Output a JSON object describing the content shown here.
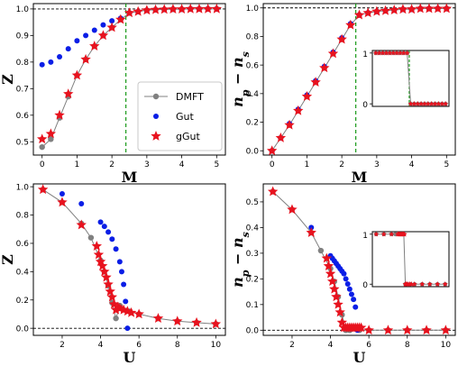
{
  "colors": {
    "dmft": "#808080",
    "gut": "#0a1ee6",
    "ggut": "#e8121e",
    "transition": "#1a9a1a",
    "reference": "#000000"
  },
  "legend": {
    "dmft": "DMFT",
    "gut": "Gut",
    "ggut": "gGut"
  },
  "chart_data": [
    {
      "id": "a",
      "type": "line",
      "xlabel": "M",
      "ylabel": "Z",
      "xlim": [
        -0.25,
        5.25
      ],
      "ylim": [
        0.45,
        1.02
      ],
      "xticks": [
        "0",
        "1",
        "2",
        "3",
        "4",
        "5"
      ],
      "yticks": [
        "0.5",
        "0.6",
        "0.7",
        "0.8",
        "0.9",
        "1.0"
      ],
      "hline": 1.0,
      "vline": 2.4,
      "legend_position": "lower-right",
      "series": [
        {
          "name": "DMFT",
          "marker": "circle-line",
          "x": [
            0,
            0.25,
            0.5,
            0.75,
            1.0,
            1.25,
            1.5,
            1.75,
            2.0,
            2.25,
            2.5,
            2.75,
            3.0,
            3.25,
            3.5,
            3.75,
            4.0,
            4.25,
            4.5,
            4.75,
            5.0
          ],
          "y": [
            0.48,
            0.51,
            0.59,
            0.67,
            0.75,
            0.81,
            0.86,
            0.9,
            0.93,
            0.96,
            0.985,
            0.99,
            0.995,
            0.997,
            0.998,
            0.999,
            0.999,
            1.0,
            1.0,
            1.0,
            1.0
          ]
        },
        {
          "name": "Gut",
          "marker": "dot",
          "x": [
            0,
            0.25,
            0.5,
            0.75,
            1.0,
            1.25,
            1.5,
            1.75,
            2.0,
            2.25,
            2.5,
            2.75,
            3.0,
            3.25,
            3.5,
            3.75,
            4.0,
            4.25,
            4.5,
            4.75,
            5.0
          ],
          "y": [
            0.79,
            0.8,
            0.82,
            0.85,
            0.88,
            0.9,
            0.92,
            0.94,
            0.955,
            0.965,
            0.985,
            0.99,
            0.995,
            0.997,
            0.998,
            0.999,
            0.999,
            1.0,
            1.0,
            1.0,
            1.0
          ]
        },
        {
          "name": "gGut",
          "marker": "star",
          "x": [
            0,
            0.25,
            0.5,
            0.75,
            1.0,
            1.25,
            1.5,
            1.75,
            2.0,
            2.25,
            2.5,
            2.75,
            3.0,
            3.25,
            3.5,
            3.75,
            4.0,
            4.25,
            4.5,
            4.75,
            5.0
          ],
          "y": [
            0.51,
            0.53,
            0.6,
            0.68,
            0.75,
            0.81,
            0.86,
            0.9,
            0.93,
            0.96,
            0.985,
            0.99,
            0.995,
            0.997,
            0.998,
            0.999,
            0.999,
            1.0,
            1.0,
            1.0,
            1.0
          ]
        }
      ]
    },
    {
      "id": "b",
      "type": "line",
      "xlabel": "M",
      "ylabel": "n_p − n_s",
      "xlim": [
        -0.25,
        5.25
      ],
      "ylim": [
        -0.03,
        1.03
      ],
      "xticks": [
        "0",
        "1",
        "2",
        "3",
        "4",
        "5"
      ],
      "yticks": [
        "0.0",
        "0.2",
        "0.4",
        "0.6",
        "0.8",
        "1.0"
      ],
      "hline": 1.0,
      "vline": 2.4,
      "series": [
        {
          "name": "DMFT",
          "marker": "circle-line",
          "x": [
            0,
            0.25,
            0.5,
            0.75,
            1.0,
            1.25,
            1.5,
            1.75,
            2.0,
            2.25,
            2.5,
            2.75,
            3.0,
            3.25,
            3.5,
            3.75,
            4.0,
            4.25,
            4.5,
            4.75,
            5.0
          ],
          "y": [
            0.0,
            0.09,
            0.18,
            0.28,
            0.38,
            0.48,
            0.58,
            0.68,
            0.78,
            0.88,
            0.95,
            0.965,
            0.975,
            0.98,
            0.985,
            0.99,
            0.99,
            0.995,
            0.995,
            0.995,
            0.995
          ]
        },
        {
          "name": "Gut",
          "marker": "dot",
          "x": [
            0,
            0.25,
            0.5,
            0.75,
            1.0,
            1.25,
            1.5,
            1.75,
            2.0,
            2.25,
            2.5,
            2.75,
            3.0,
            3.25,
            3.5,
            3.75,
            4.0,
            4.25,
            4.5,
            4.75,
            5.0
          ],
          "y": [
            0.0,
            0.09,
            0.19,
            0.29,
            0.39,
            0.49,
            0.59,
            0.69,
            0.79,
            0.89,
            0.95,
            0.965,
            0.975,
            0.98,
            0.985,
            0.99,
            0.99,
            0.995,
            0.995,
            0.995,
            0.995
          ]
        },
        {
          "name": "gGut",
          "marker": "star",
          "x": [
            0,
            0.25,
            0.5,
            0.75,
            1.0,
            1.25,
            1.5,
            1.75,
            2.0,
            2.25,
            2.5,
            2.75,
            3.0,
            3.25,
            3.5,
            3.75,
            4.0,
            4.25,
            4.5,
            4.75,
            5.0
          ],
          "y": [
            0.0,
            0.09,
            0.18,
            0.28,
            0.38,
            0.48,
            0.58,
            0.68,
            0.78,
            0.88,
            0.95,
            0.965,
            0.975,
            0.98,
            0.985,
            0.99,
            0.99,
            0.995,
            0.995,
            0.995,
            0.995
          ]
        }
      ],
      "inset": {
        "xlim": [
          -0.25,
          5.25
        ],
        "ylim": [
          -0.05,
          1.05
        ],
        "yticks": [
          "0",
          "1"
        ],
        "vline": 2.4,
        "series": [
          {
            "name": "DMFT",
            "marker": "circle-line",
            "x": [
              0,
              0.25,
              0.5,
              0.75,
              1.0,
              1.25,
              1.5,
              1.75,
              2.0,
              2.25,
              2.5,
              2.75,
              3.0,
              3.25,
              3.5,
              3.75,
              4.0,
              4.25,
              4.5,
              4.75,
              5.0
            ],
            "y": [
              1,
              1,
              1,
              1,
              1,
              1,
              1,
              1,
              1,
              1,
              0,
              0,
              0,
              0,
              0,
              0,
              0,
              0,
              0,
              0,
              0
            ]
          },
          {
            "name": "gGut",
            "marker": "star",
            "x": [
              0,
              0.25,
              0.5,
              0.75,
              1.0,
              1.25,
              1.5,
              1.75,
              2.0,
              2.25,
              2.5,
              2.75,
              3.0,
              3.25,
              3.5,
              3.75,
              4.0,
              4.25,
              4.5,
              4.75,
              5.0
            ],
            "y": [
              1,
              1,
              1,
              1,
              1,
              1,
              1,
              1,
              1,
              1,
              0,
              0,
              0,
              0,
              0,
              0,
              0,
              0,
              0,
              0,
              0
            ]
          }
        ]
      }
    },
    {
      "id": "c",
      "type": "line",
      "xlabel": "U",
      "ylabel": "Z",
      "xlim": [
        0.5,
        10.5
      ],
      "ylim": [
        -0.05,
        1.02
      ],
      "xticks": [
        "2",
        "4",
        "6",
        "8",
        "10"
      ],
      "yticks": [
        "0.0",
        "0.2",
        "0.4",
        "0.6",
        "0.8",
        "1.0"
      ],
      "hline": 0.0,
      "series": [
        {
          "name": "DMFT",
          "marker": "circle-line",
          "x": [
            1,
            2,
            3,
            3.5,
            4.0,
            4.2,
            4.4,
            4.6,
            4.8,
            5.0,
            5.5,
            6,
            7,
            8,
            9,
            10
          ],
          "y": [
            0.98,
            0.89,
            0.74,
            0.64,
            0.48,
            0.4,
            0.3,
            0.18,
            0.07,
            0.16,
            0.12,
            0.1,
            0.07,
            0.05,
            0.04,
            0.03
          ]
        },
        {
          "name": "Gut",
          "marker": "dot",
          "x": [
            2,
            3,
            4,
            4.2,
            4.4,
            4.6,
            4.8,
            5.0,
            5.1,
            5.2,
            5.3,
            5.4
          ],
          "y": [
            0.95,
            0.88,
            0.75,
            0.72,
            0.68,
            0.63,
            0.56,
            0.47,
            0.4,
            0.31,
            0.19,
            0.0
          ]
        },
        {
          "name": "gGut",
          "marker": "star",
          "x": [
            1,
            2,
            3,
            3.8,
            3.9,
            4.0,
            4.1,
            4.2,
            4.3,
            4.4,
            4.5,
            4.6,
            4.7,
            4.8,
            4.9,
            5.0,
            5.2,
            5.4,
            5.6,
            6,
            7,
            8,
            9,
            10
          ],
          "y": [
            0.98,
            0.89,
            0.73,
            0.58,
            0.52,
            0.47,
            0.44,
            0.4,
            0.36,
            0.31,
            0.26,
            0.22,
            0.17,
            0.13,
            0.15,
            0.14,
            0.13,
            0.12,
            0.11,
            0.1,
            0.07,
            0.05,
            0.04,
            0.03
          ]
        }
      ]
    },
    {
      "id": "d",
      "type": "line",
      "xlabel": "U",
      "ylabel": "n_p − n_s",
      "xlim": [
        0.5,
        10.5
      ],
      "ylim": [
        -0.02,
        0.57
      ],
      "xticks": [
        "2",
        "4",
        "6",
        "8",
        "10"
      ],
      "yticks": [
        "0.0",
        "0.1",
        "0.2",
        "0.3",
        "0.4",
        "0.5"
      ],
      "hline": 0.0,
      "series": [
        {
          "name": "DMFT",
          "marker": "circle-line",
          "x": [
            1,
            2,
            3,
            3.5,
            4.0,
            4.2,
            4.4,
            4.6,
            4.8,
            5.0,
            5.5,
            6,
            7,
            8,
            9,
            10
          ],
          "y": [
            0.54,
            0.47,
            0.38,
            0.31,
            0.24,
            0.19,
            0.13,
            0.06,
            0.0,
            0.0,
            0.0,
            0.0,
            0.0,
            0.0,
            0.0,
            0.0
          ]
        },
        {
          "name": "Gut",
          "marker": "dot",
          "x": [
            3,
            4,
            4.1,
            4.2,
            4.3,
            4.4,
            4.5,
            4.6,
            4.7,
            4.8,
            4.9,
            5.0,
            5.1,
            5.2,
            5.3,
            5.4
          ],
          "y": [
            0.4,
            0.29,
            0.28,
            0.27,
            0.26,
            0.25,
            0.24,
            0.23,
            0.22,
            0.2,
            0.18,
            0.16,
            0.14,
            0.12,
            0.09,
            0.0
          ]
        },
        {
          "name": "gGut",
          "marker": "star",
          "x": [
            1,
            2,
            3,
            3.8,
            3.9,
            4.0,
            4.1,
            4.2,
            4.3,
            4.4,
            4.5,
            4.6,
            4.7,
            4.8,
            4.9,
            5.0,
            5.1,
            5.2,
            5.3,
            5.4,
            5.5,
            5.6,
            6,
            7,
            8,
            9,
            10
          ],
          "y": [
            0.54,
            0.47,
            0.38,
            0.28,
            0.25,
            0.22,
            0.19,
            0.16,
            0.13,
            0.1,
            0.07,
            0.03,
            0.01,
            0.01,
            0.01,
            0.01,
            0.01,
            0.01,
            0.01,
            0.01,
            0.01,
            0.01,
            0.0,
            0.0,
            0.0,
            0.0,
            0.0
          ]
        }
      ],
      "inset": {
        "xlim": [
          0.5,
          10.5
        ],
        "ylim": [
          -0.05,
          1.05
        ],
        "yticks": [
          "0",
          "1"
        ],
        "series": [
          {
            "name": "DMFT",
            "marker": "circle-line",
            "x": [
              1,
              2,
              3,
              3.5,
              4.0,
              4.2,
              4.4,
              4.6,
              4.8,
              5.0,
              5.5,
              6,
              7,
              8,
              9,
              10
            ],
            "y": [
              1,
              1,
              1,
              1,
              1,
              1,
              1,
              1,
              0,
              0,
              0,
              0,
              0,
              0,
              0,
              0
            ]
          },
          {
            "name": "gGut",
            "marker": "star",
            "x": [
              1,
              2,
              3,
              3.8,
              3.9,
              4.0,
              4.1,
              4.2,
              4.3,
              4.4,
              4.5,
              4.6,
              4.7,
              4.8,
              4.9,
              5.0,
              5.2,
              5.4,
              5.6,
              6,
              7,
              8,
              9,
              10
            ],
            "y": [
              1,
              1,
              1,
              1,
              1,
              1,
              1,
              1,
              1,
              1,
              1,
              1,
              1,
              0,
              0,
              0,
              0,
              0,
              0,
              0,
              0,
              0,
              0,
              0
            ]
          }
        ]
      }
    }
  ]
}
